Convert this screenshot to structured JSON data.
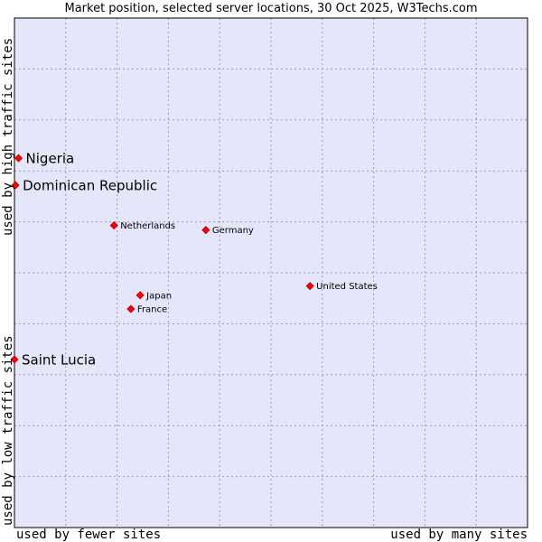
{
  "chart_data": {
    "type": "scatter",
    "title": "Market position, selected server locations, 30 Oct 2025, W3Techs.com",
    "xlabel_left": "used by fewer sites",
    "xlabel_right": "used by many sites",
    "ylabel_top": "used by high traffic sites",
    "ylabel_bottom": "used by low traffic sites",
    "xlim": [
      0,
      10
    ],
    "ylim": [
      0,
      10
    ],
    "grid": true,
    "points": [
      {
        "name": "Nigeria",
        "x": 0.08,
        "y": 7.25,
        "emphasis": true
      },
      {
        "name": "Dominican Republic",
        "x": 0.02,
        "y": 6.72,
        "emphasis": true
      },
      {
        "name": "Netherlands",
        "x": 1.94,
        "y": 5.93,
        "emphasis": false
      },
      {
        "name": "Germany",
        "x": 3.73,
        "y": 5.84,
        "emphasis": false
      },
      {
        "name": "United States",
        "x": 5.76,
        "y": 4.74,
        "emphasis": false
      },
      {
        "name": "Japan",
        "x": 2.45,
        "y": 4.56,
        "emphasis": false
      },
      {
        "name": "France",
        "x": 2.27,
        "y": 4.29,
        "emphasis": false
      },
      {
        "name": "Saint Lucia",
        "x": 0.0,
        "y": 3.3,
        "emphasis": true
      }
    ]
  },
  "colors": {
    "plot_background": "#e6e6fa",
    "grid": "#9a9ab5",
    "marker": "#ff0000",
    "marker_edge": "#b00000"
  }
}
